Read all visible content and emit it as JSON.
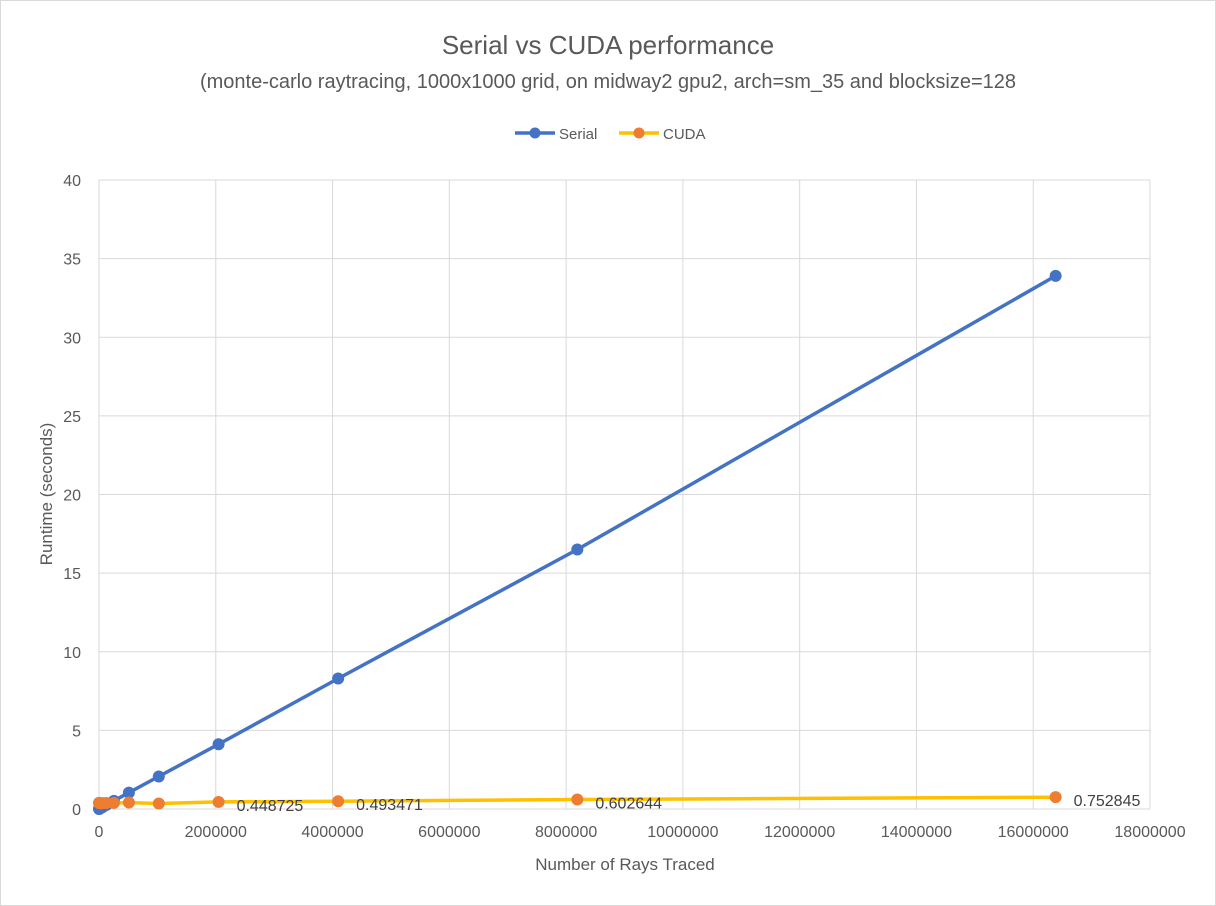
{
  "chart_data": {
    "type": "line",
    "title": "Serial vs CUDA performance",
    "subtitle": "(monte-carlo raytracing, 1000x1000 grid, on midway2 gpu2, arch=sm_35 and blocksize=128",
    "xlabel": "Number of Rays Traced",
    "ylabel": "Runtime (seconds)",
    "xlim": [
      0,
      18000000
    ],
    "ylim": [
      0,
      40
    ],
    "x_ticks": [
      0,
      2000000,
      4000000,
      6000000,
      8000000,
      10000000,
      12000000,
      14000000,
      16000000,
      18000000
    ],
    "x_tick_labels": [
      "0",
      "2000000",
      "4000000",
      "6000000",
      "8000000",
      "10000000",
      "12000000",
      "14000000",
      "16000000",
      "18000000"
    ],
    "y_ticks": [
      0,
      5,
      10,
      15,
      20,
      25,
      30,
      35,
      40
    ],
    "y_tick_labels": [
      "0",
      "5",
      "10",
      "15",
      "20",
      "25",
      "30",
      "35",
      "40"
    ],
    "grid": true,
    "legend_position": "top-center",
    "series": [
      {
        "name": "Serial",
        "color": "#4472c4",
        "x": [
          1000,
          2000,
          4000,
          8000,
          16000,
          32000,
          64000,
          128000,
          256000,
          512000,
          1024000,
          2048000,
          4096000,
          8192000,
          16384000
        ],
        "y": [
          0.002,
          0.004,
          0.008,
          0.016,
          0.032,
          0.066,
          0.13,
          0.26,
          0.52,
          1.04,
          2.07,
          4.12,
          8.3,
          16.5,
          33.9
        ]
      },
      {
        "name": "CUDA",
        "color": "#ffc000",
        "marker_color": "#ed7d31",
        "x": [
          1000,
          2000,
          4000,
          8000,
          16000,
          32000,
          64000,
          128000,
          256000,
          512000,
          1024000,
          2048000,
          4096000,
          8192000,
          16384000
        ],
        "y": [
          0.39,
          0.38,
          0.38,
          0.37,
          0.37,
          0.36,
          0.37,
          0.38,
          0.39,
          0.41,
          0.35,
          0.448725,
          0.493471,
          0.602644,
          0.752845
        ]
      }
    ],
    "data_labels": [
      {
        "series": "CUDA",
        "x": 2048000,
        "text": "0.448725"
      },
      {
        "series": "CUDA",
        "x": 4096000,
        "text": "0.493471"
      },
      {
        "series": "CUDA",
        "x": 8192000,
        "text": "0.602644"
      },
      {
        "series": "CUDA",
        "x": 16384000,
        "text": "0.752845"
      }
    ]
  }
}
